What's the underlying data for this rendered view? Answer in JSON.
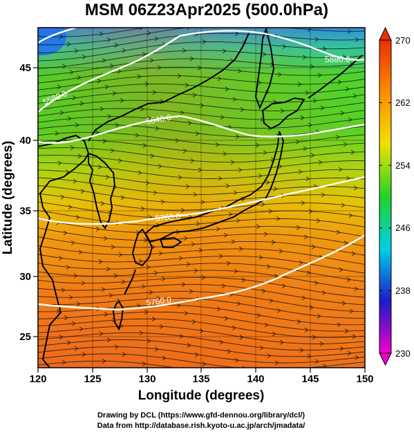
{
  "title": "MSM 06Z23Apr2025 (500.0hPa)",
  "x_axis": {
    "label": "Longitude (degrees)",
    "ticks": [
      "120",
      "125",
      "130",
      "135",
      "140",
      "145",
      "150"
    ]
  },
  "y_axis": {
    "label": "Latitude  (degrees)",
    "ticks": [
      "25",
      "30",
      "35",
      "40",
      "45"
    ]
  },
  "colorbar": {
    "ticks": [
      "230",
      "238",
      "246",
      "254",
      "262",
      "270"
    ],
    "min": 230,
    "max": 270,
    "colors": [
      "#ee00cc",
      "#1c1cc8",
      "#00cfe8",
      "#22d428",
      "#f0e000",
      "#ff8c00",
      "#e83000"
    ]
  },
  "contour_labels": [
    "5580.0",
    "5640.0",
    "5700.0",
    "5760.0",
    "5880.0"
  ],
  "credits": {
    "line1": "Drawing by DCL (https://www.gfd-dennou.org/library/dcl/)",
    "line2": "Data from http://database.rish.kyoto-u.ac.jp/arch/jmadata/"
  },
  "chart_data": {
    "type": "heatmap",
    "title": "MSM 06Z23Apr2025 (500.0hPa)",
    "xlabel": "Longitude (degrees)",
    "ylabel": "Latitude  (degrees)",
    "xlim": [
      120,
      150
    ],
    "ylim": [
      22.4,
      47.6
    ],
    "colorbar_range": [
      230,
      270
    ],
    "colormap": "rainbow (magenta-blue-cyan-green-yellow-orange-red)",
    "overlays": [
      "geopotential height contours (white)",
      "wind streamlines (black)",
      "coastlines (black)",
      "graticule grid"
    ],
    "contours": [
      {
        "label": "5580.0"
      },
      {
        "label": "5640.0"
      },
      {
        "label": "5700.0"
      },
      {
        "label": "5760.0"
      },
      {
        "label": "5880.0"
      }
    ]
  }
}
